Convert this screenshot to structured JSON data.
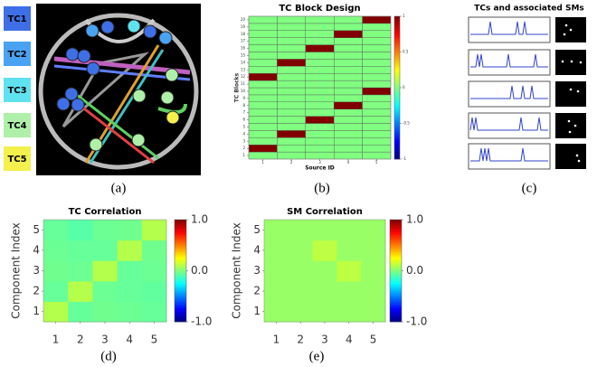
{
  "figure": {
    "tc_labels": [
      "TC1",
      "TC2",
      "TC3",
      "TC4",
      "TC5"
    ],
    "panel_labels": [
      "(a)",
      "(b)",
      "(c)",
      "(d)",
      "(e)"
    ],
    "panel_c_title": "TCs and associated SMs"
  },
  "chart_data": [
    {
      "type": "heatmap",
      "title": "TC Block Design",
      "xlabel": "Source ID",
      "ylabel": "TC Blocks",
      "xticks": [
        1,
        2,
        3,
        4,
        5
      ],
      "yticks": [
        1,
        2,
        3,
        4,
        5,
        6,
        7,
        8,
        9,
        10,
        11,
        12,
        13,
        14,
        15,
        16,
        17,
        18,
        19,
        20
      ],
      "z": [
        [
          0,
          0,
          0,
          0,
          0
        ],
        [
          1,
          0,
          0,
          0,
          0
        ],
        [
          0,
          0,
          0,
          0,
          0
        ],
        [
          0,
          1,
          0,
          0,
          0
        ],
        [
          0,
          0,
          0,
          0,
          0
        ],
        [
          0,
          0,
          1,
          0,
          0
        ],
        [
          0,
          0,
          0,
          0,
          0
        ],
        [
          0,
          0,
          0,
          1,
          0
        ],
        [
          0,
          0,
          0,
          0,
          0
        ],
        [
          0,
          0,
          0,
          0,
          1
        ],
        [
          0,
          0,
          0,
          0,
          0
        ],
        [
          1,
          0,
          0,
          0,
          0
        ],
        [
          0,
          0,
          0,
          0,
          0
        ],
        [
          0,
          1,
          0,
          0,
          0
        ],
        [
          0,
          0,
          0,
          0,
          0
        ],
        [
          0,
          0,
          1,
          0,
          0
        ],
        [
          0,
          0,
          0,
          0,
          0
        ],
        [
          0,
          0,
          0,
          1,
          0
        ],
        [
          0,
          0,
          0,
          0,
          0
        ],
        [
          0,
          0,
          0,
          0,
          1
        ]
      ],
      "zlim": [
        -1,
        1
      ],
      "zticks": [
        -1,
        -0.5,
        0,
        0.5,
        1
      ],
      "colormap": "jet",
      "cell_border": true
    },
    {
      "type": "heatmap",
      "title": "TC Correlation",
      "ylabel": "Component Index",
      "xticks": [
        1,
        2,
        3,
        4,
        5
      ],
      "yticks": [
        1,
        2,
        3,
        4,
        5
      ],
      "z": [
        [
          0.1,
          -0.05,
          -0.03,
          -0.04,
          -0.05
        ],
        [
          -0.05,
          0.1,
          -0.04,
          -0.05,
          -0.06
        ],
        [
          -0.03,
          -0.04,
          0.1,
          -0.05,
          -0.04
        ],
        [
          -0.04,
          -0.05,
          -0.05,
          0.1,
          -0.03
        ],
        [
          -0.05,
          -0.08,
          -0.04,
          -0.03,
          0.1
        ]
      ],
      "zlim": [
        -1,
        1
      ],
      "zticks": [
        {
          "value": -1,
          "label": "-1.0"
        },
        {
          "value": 0,
          "label": "0.0"
        },
        {
          "value": 1,
          "label": "1.0"
        }
      ],
      "colormap": "jet",
      "cell_border": false
    },
    {
      "type": "heatmap",
      "title": "SM Correlation",
      "ylabel": "Component Index",
      "xticks": [
        1,
        2,
        3,
        4,
        5
      ],
      "yticks": [
        1,
        2,
        3,
        4,
        5
      ],
      "z": [
        [
          0.05,
          0.05,
          0.05,
          0.05,
          0.05
        ],
        [
          0.05,
          0.05,
          0.05,
          0.05,
          0.05
        ],
        [
          0.05,
          0.05,
          0.05,
          0.12,
          0.05
        ],
        [
          0.05,
          0.05,
          0.12,
          0.05,
          0.05
        ],
        [
          0.05,
          0.05,
          0.05,
          0.05,
          0.05
        ]
      ],
      "zlim": [
        -1,
        1
      ],
      "zticks": [
        {
          "value": -1,
          "label": "-1.0"
        },
        {
          "value": 0,
          "label": "0.0"
        },
        {
          "value": 1,
          "label": "1.0"
        }
      ],
      "colormap": "jet",
      "cell_border": false
    }
  ]
}
